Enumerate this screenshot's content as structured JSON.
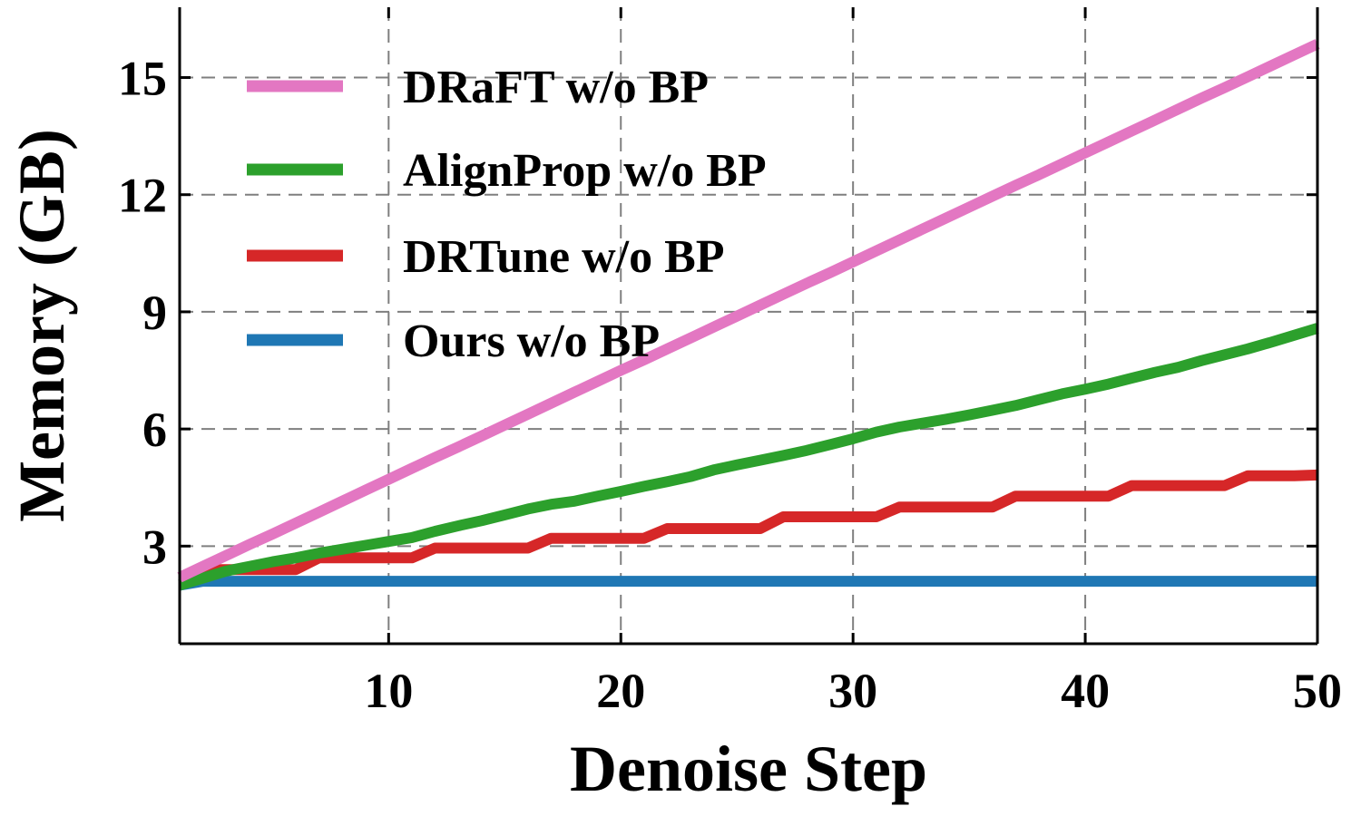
{
  "chart_data": {
    "type": "line",
    "title": "",
    "xlabel": "Denoise Step",
    "ylabel": "Memory (GB)",
    "xlim": [
      1,
      50
    ],
    "ylim": [
      0.5,
      16.8
    ],
    "xticks": [
      10,
      20,
      30,
      40,
      50
    ],
    "yticks": [
      3,
      6,
      9,
      12,
      15
    ],
    "grid": true,
    "legend_position": "top-left",
    "x": [
      1,
      2,
      3,
      4,
      5,
      6,
      7,
      8,
      9,
      10,
      11,
      12,
      13,
      14,
      15,
      16,
      17,
      18,
      19,
      20,
      21,
      22,
      23,
      24,
      25,
      26,
      27,
      28,
      29,
      30,
      31,
      32,
      33,
      34,
      35,
      36,
      37,
      38,
      39,
      40,
      41,
      42,
      43,
      44,
      45,
      46,
      47,
      48,
      49,
      50
    ],
    "series": [
      {
        "name": "DRaFT w/o BP",
        "color": "#e377c2",
        "values": [
          2.2,
          2.48,
          2.76,
          3.04,
          3.31,
          3.59,
          3.87,
          4.15,
          4.43,
          4.71,
          4.99,
          5.27,
          5.54,
          5.82,
          6.1,
          6.38,
          6.66,
          6.94,
          7.22,
          7.5,
          7.77,
          8.05,
          8.33,
          8.61,
          8.89,
          9.17,
          9.45,
          9.73,
          10.0,
          10.28,
          10.56,
          10.84,
          11.12,
          11.4,
          11.68,
          11.96,
          12.24,
          12.51,
          12.79,
          13.07,
          13.35,
          13.63,
          13.91,
          14.19,
          14.47,
          14.74,
          15.02,
          15.3,
          15.58,
          15.86
        ]
      },
      {
        "name": "AlignProp w/o BP",
        "color": "#2ca02c",
        "values": [
          2.0,
          2.18,
          2.36,
          2.48,
          2.6,
          2.7,
          2.82,
          2.92,
          3.02,
          3.12,
          3.22,
          3.38,
          3.52,
          3.65,
          3.8,
          3.95,
          4.07,
          4.15,
          4.28,
          4.4,
          4.53,
          4.65,
          4.78,
          4.95,
          5.08,
          5.2,
          5.32,
          5.45,
          5.6,
          5.75,
          5.92,
          6.05,
          6.15,
          6.25,
          6.36,
          6.48,
          6.6,
          6.75,
          6.9,
          7.02,
          7.15,
          7.3,
          7.45,
          7.58,
          7.75,
          7.9,
          8.05,
          8.22,
          8.4,
          8.58
        ]
      },
      {
        "name": "DRTune w/o BP",
        "color": "#d62728",
        "values": [
          2.2,
          2.4,
          2.4,
          2.4,
          2.4,
          2.4,
          2.7,
          2.7,
          2.7,
          2.7,
          2.7,
          2.95,
          2.95,
          2.95,
          2.95,
          2.95,
          3.2,
          3.2,
          3.2,
          3.2,
          3.2,
          3.45,
          3.45,
          3.45,
          3.45,
          3.45,
          3.75,
          3.75,
          3.75,
          3.75,
          3.75,
          4.0,
          4.0,
          4.0,
          4.0,
          4.0,
          4.28,
          4.28,
          4.28,
          4.28,
          4.28,
          4.55,
          4.55,
          4.55,
          4.55,
          4.55,
          4.8,
          4.8,
          4.8,
          4.82
        ]
      },
      {
        "name": "Ours w/o BP",
        "color": "#1f77b4",
        "values": [
          2.0,
          2.1,
          2.1,
          2.1,
          2.1,
          2.1,
          2.1,
          2.1,
          2.1,
          2.1,
          2.1,
          2.1,
          2.1,
          2.1,
          2.1,
          2.1,
          2.1,
          2.1,
          2.1,
          2.1,
          2.1,
          2.1,
          2.1,
          2.1,
          2.1,
          2.1,
          2.1,
          2.1,
          2.1,
          2.1,
          2.1,
          2.1,
          2.1,
          2.1,
          2.1,
          2.1,
          2.1,
          2.1,
          2.1,
          2.1,
          2.1,
          2.1,
          2.1,
          2.1,
          2.1,
          2.1,
          2.1,
          2.1,
          2.1,
          2.1
        ]
      }
    ]
  }
}
